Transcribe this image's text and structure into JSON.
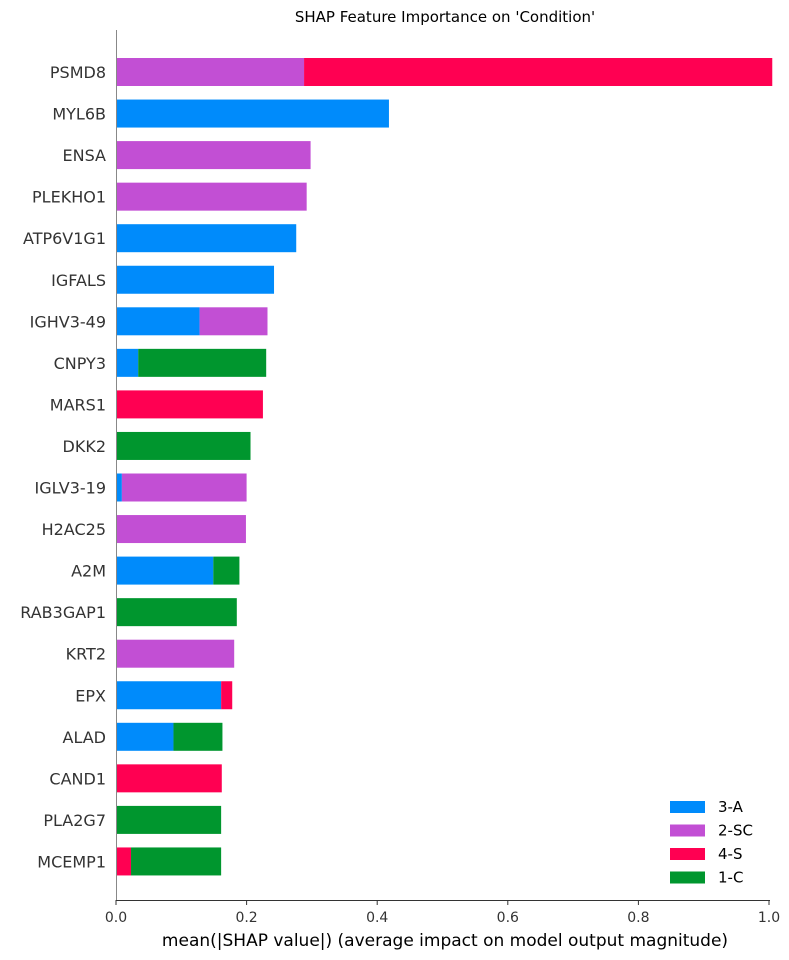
{
  "chart_data": {
    "type": "bar",
    "orientation": "horizontal",
    "stacked": true,
    "title": "SHAP Feature Importance on 'Condition'",
    "xlabel": "mean(|SHAP value|) (average impact on model output magnitude)",
    "xlim": [
      0,
      1.0
    ],
    "xticks": [
      "0.0",
      "0.2",
      "0.4",
      "0.6",
      "0.8",
      "1.0"
    ],
    "grid": false,
    "legend_position": "bottom-right",
    "colors": {
      "3-A": "#008bfb",
      "2-SC": "#c24fd4",
      "4-S": "#ff0052",
      "1-C": "#00962e"
    },
    "legend": [
      "3-A",
      "2-SC",
      "4-S",
      "1-C"
    ],
    "categories": [
      "PSMD8",
      "MYL6B",
      "ENSA",
      "PLEKHO1",
      "ATP6V1G1",
      "IGFALS",
      "IGHV3-49",
      "CNPY3",
      "MARS1",
      "DKK2",
      "IGLV3-19",
      "H2AC25",
      "A2M",
      "RAB3GAP1",
      "KRT2",
      "EPX",
      "ALAD",
      "CAND1",
      "PLA2G7",
      "MCEMP1"
    ],
    "bars": [
      [
        {
          "series": "2-SC",
          "value": 0.288
        },
        {
          "series": "4-S",
          "value": 0.717
        }
      ],
      [
        {
          "series": "3-A",
          "value": 0.418
        }
      ],
      [
        {
          "series": "2-SC",
          "value": 0.298
        }
      ],
      [
        {
          "series": "2-SC",
          "value": 0.292
        }
      ],
      [
        {
          "series": "3-A",
          "value": 0.276
        }
      ],
      [
        {
          "series": "3-A",
          "value": 0.242
        }
      ],
      [
        {
          "series": "3-A",
          "value": 0.128
        },
        {
          "series": "2-SC",
          "value": 0.104
        }
      ],
      [
        {
          "series": "3-A",
          "value": 0.034
        },
        {
          "series": "1-C",
          "value": 0.196
        }
      ],
      [
        {
          "series": "4-S",
          "value": 0.225
        }
      ],
      [
        {
          "series": "1-C",
          "value": 0.206
        }
      ],
      [
        {
          "series": "3-A",
          "value": 0.009
        },
        {
          "series": "2-SC",
          "value": 0.191
        }
      ],
      [
        {
          "series": "2-SC",
          "value": 0.199
        }
      ],
      [
        {
          "series": "3-A",
          "value": 0.149
        },
        {
          "series": "1-C",
          "value": 0.04
        }
      ],
      [
        {
          "series": "1-C",
          "value": 0.185
        }
      ],
      [
        {
          "series": "2-SC",
          "value": 0.181
        }
      ],
      [
        {
          "series": "3-A",
          "value": 0.161
        },
        {
          "series": "4-S",
          "value": 0.017
        }
      ],
      [
        {
          "series": "3-A",
          "value": 0.088
        },
        {
          "series": "1-C",
          "value": 0.075
        }
      ],
      [
        {
          "series": "4-S",
          "value": 0.162
        }
      ],
      [
        {
          "series": "1-C",
          "value": 0.161
        }
      ],
      [
        {
          "series": "4-S",
          "value": 0.023
        },
        {
          "series": "1-C",
          "value": 0.138
        }
      ]
    ]
  }
}
